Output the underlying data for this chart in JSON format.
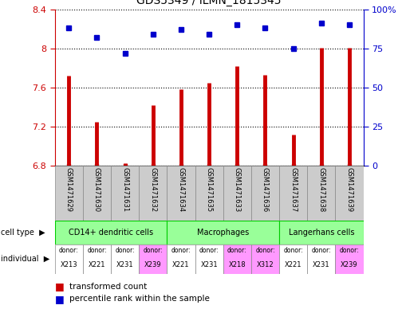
{
  "title": "GDS5349 / ILMN_1815345",
  "samples": [
    "GSM1471629",
    "GSM1471630",
    "GSM1471631",
    "GSM1471632",
    "GSM1471634",
    "GSM1471635",
    "GSM1471633",
    "GSM1471636",
    "GSM1471637",
    "GSM1471638",
    "GSM1471639"
  ],
  "transformed_count": [
    7.72,
    7.25,
    6.83,
    7.42,
    7.58,
    7.65,
    7.82,
    7.73,
    7.12,
    8.01,
    8.01
  ],
  "percentile_rank": [
    88,
    82,
    72,
    84,
    87,
    84,
    90,
    88,
    75,
    91,
    90
  ],
  "ylim_left": [
    6.8,
    8.4
  ],
  "ylim_right": [
    0,
    100
  ],
  "yticks_left": [
    6.8,
    7.2,
    7.6,
    8.0,
    8.4
  ],
  "ytick_labels_left": [
    "6.8",
    "7.2",
    "7.6",
    "8",
    "8.4"
  ],
  "yticks_right": [
    0,
    25,
    50,
    75,
    100
  ],
  "ytick_labels_right": [
    "0",
    "25",
    "50",
    "75",
    "100%"
  ],
  "bar_color": "#cc0000",
  "scatter_color": "#0000cc",
  "cell_regions": [
    {
      "label": "CD14+ dendritic cells",
      "start": 0,
      "end": 3
    },
    {
      "label": "Macrophages",
      "start": 4,
      "end": 7
    },
    {
      "label": "Langerhans cells",
      "start": 8,
      "end": 10
    }
  ],
  "individuals": [
    "X213",
    "X221",
    "X231",
    "X239",
    "X221",
    "X231",
    "X218",
    "X312",
    "X221",
    "X231",
    "X239"
  ],
  "ind_colors": [
    "#ffffff",
    "#ffffff",
    "#ffffff",
    "#ff99ff",
    "#ffffff",
    "#ffffff",
    "#ff99ff",
    "#ff99ff",
    "#ffffff",
    "#ffffff",
    "#ff99ff"
  ],
  "bg_color_sample": "#cccccc",
  "cell_type_color": "#99ff99",
  "cell_type_border": "#00cc00"
}
